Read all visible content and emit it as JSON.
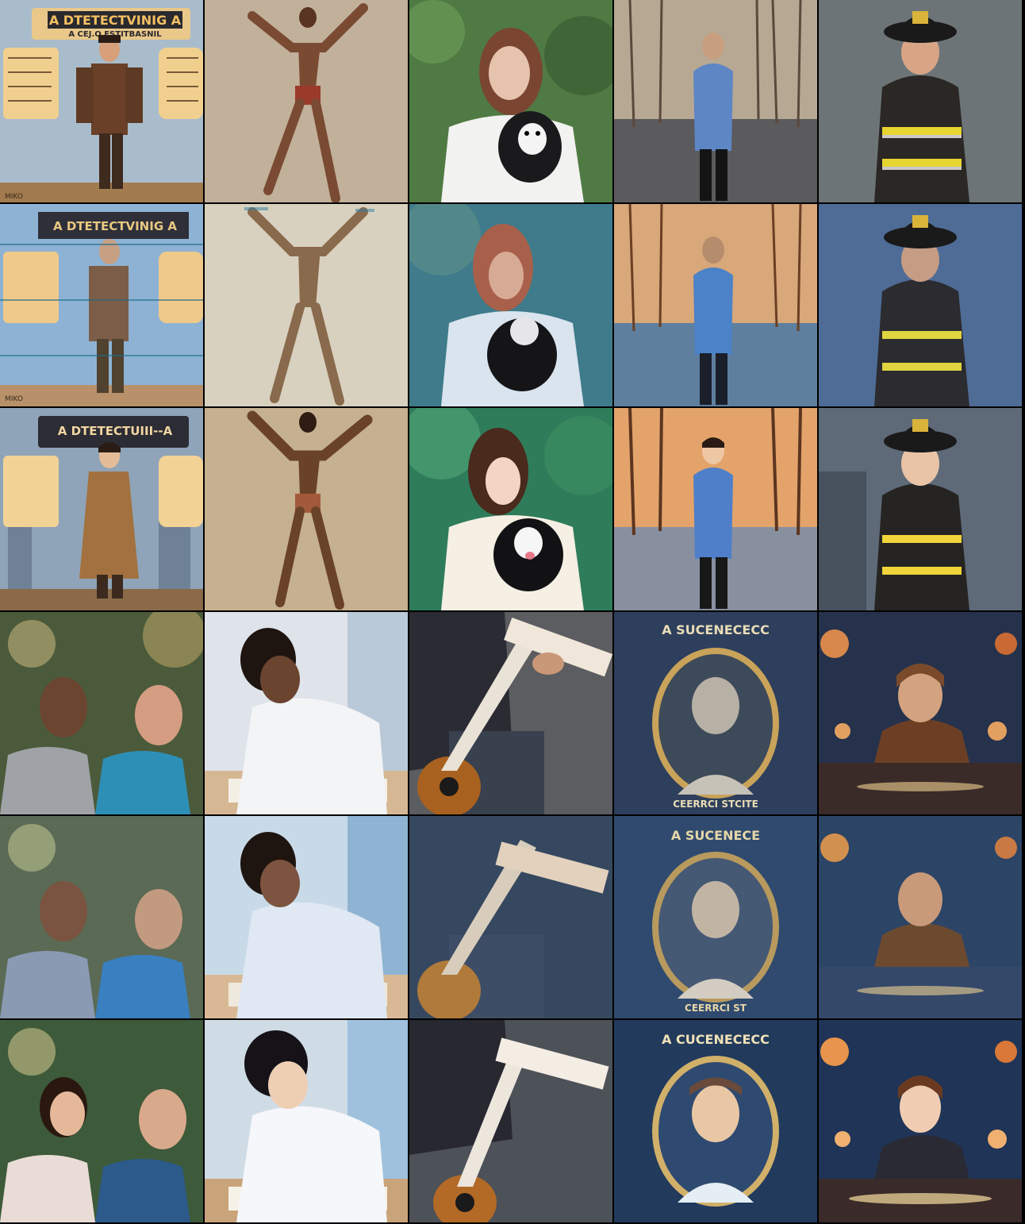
{
  "grid": {
    "rows": 6,
    "cols": 5
  },
  "tiles": [
    {
      "row": 1,
      "col": 1,
      "style": "photo",
      "subject": "detective-infographic",
      "banner_title": "A DTETECTVINIG A",
      "banner_subtitle": "A CEJ.O ESTITBASNIL",
      "corner_mark": "MIKO"
    },
    {
      "row": 1,
      "col": 2,
      "style": "photo",
      "subject": "dancer"
    },
    {
      "row": 1,
      "col": 3,
      "style": "photo",
      "subject": "woman-with-puppy"
    },
    {
      "row": 1,
      "col": 4,
      "style": "photo",
      "subject": "man-walking-in-park"
    },
    {
      "row": 1,
      "col": 5,
      "style": "photo",
      "subject": "firefighter"
    },
    {
      "row": 2,
      "col": 1,
      "style": "glitch",
      "subject": "detective-infographic",
      "banner_title": "A DTETECTVINIG A",
      "corner_mark": "MIKO"
    },
    {
      "row": 2,
      "col": 2,
      "style": "glitch",
      "subject": "dancer"
    },
    {
      "row": 2,
      "col": 3,
      "style": "glitch",
      "subject": "woman-with-puppy"
    },
    {
      "row": 2,
      "col": 4,
      "style": "glitch",
      "subject": "man-walking-in-park"
    },
    {
      "row": 2,
      "col": 5,
      "style": "glitch",
      "subject": "firefighter"
    },
    {
      "row": 3,
      "col": 1,
      "style": "anime",
      "subject": "detective-infographic",
      "banner_title": "A DTETECTUIII--A"
    },
    {
      "row": 3,
      "col": 2,
      "style": "anime",
      "subject": "dancer"
    },
    {
      "row": 3,
      "col": 3,
      "style": "anime",
      "subject": "woman-with-puppy"
    },
    {
      "row": 3,
      "col": 4,
      "style": "anime",
      "subject": "man-walking-in-park"
    },
    {
      "row": 3,
      "col": 5,
      "style": "anime",
      "subject": "firefighter"
    },
    {
      "row": 4,
      "col": 1,
      "style": "photo",
      "subject": "two-men-laughing"
    },
    {
      "row": 4,
      "col": 2,
      "style": "photo",
      "subject": "student-writing"
    },
    {
      "row": 4,
      "col": 3,
      "style": "photo",
      "subject": "guitar-player"
    },
    {
      "row": 4,
      "col": 4,
      "style": "photo",
      "subject": "scientist-medallion",
      "medallion_text": "A SUCENECECC",
      "medallion_bottom": "CEERRCI STCITE"
    },
    {
      "row": 4,
      "col": 5,
      "style": "photo",
      "subject": "cosmic-portrait"
    },
    {
      "row": 5,
      "col": 1,
      "style": "glitch",
      "subject": "two-men-laughing"
    },
    {
      "row": 5,
      "col": 2,
      "style": "glitch",
      "subject": "student-writing"
    },
    {
      "row": 5,
      "col": 3,
      "style": "glitch",
      "subject": "guitar-player"
    },
    {
      "row": 5,
      "col": 4,
      "style": "glitch",
      "subject": "scientist-medallion",
      "medallion_text": "A SUCENECE",
      "medallion_bottom": "CEERRCI ST"
    },
    {
      "row": 5,
      "col": 5,
      "style": "glitch",
      "subject": "cosmic-portrait"
    },
    {
      "row": 6,
      "col": 1,
      "style": "anime",
      "subject": "two-men-laughing"
    },
    {
      "row": 6,
      "col": 2,
      "style": "anime",
      "subject": "student-writing"
    },
    {
      "row": 6,
      "col": 3,
      "style": "anime",
      "subject": "guitar-player"
    },
    {
      "row": 6,
      "col": 4,
      "style": "anime",
      "subject": "scientist-medallion",
      "medallion_text": "A CUCENECECC"
    },
    {
      "row": 6,
      "col": 5,
      "style": "anime",
      "subject": "cosmic-portrait"
    }
  ]
}
